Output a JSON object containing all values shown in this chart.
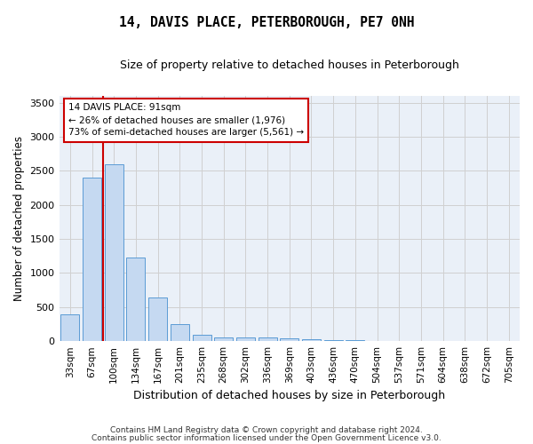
{
  "title": "14, DAVIS PLACE, PETERBOROUGH, PE7 0NH",
  "subtitle": "Size of property relative to detached houses in Peterborough",
  "xlabel": "Distribution of detached houses by size in Peterborough",
  "ylabel": "Number of detached properties",
  "footer_line1": "Contains HM Land Registry data © Crown copyright and database right 2024.",
  "footer_line2": "Contains public sector information licensed under the Open Government Licence v3.0.",
  "categories": [
    "33sqm",
    "67sqm",
    "100sqm",
    "134sqm",
    "167sqm",
    "201sqm",
    "235sqm",
    "268sqm",
    "302sqm",
    "336sqm",
    "369sqm",
    "403sqm",
    "436sqm",
    "470sqm",
    "504sqm",
    "537sqm",
    "571sqm",
    "604sqm",
    "638sqm",
    "672sqm",
    "705sqm"
  ],
  "values": [
    390,
    2400,
    2600,
    1230,
    640,
    255,
    90,
    60,
    55,
    50,
    40,
    30,
    15,
    10,
    8,
    5,
    3,
    2,
    2,
    1,
    1
  ],
  "bar_color": "#c5d9f1",
  "bar_edge_color": "#5b9bd5",
  "grid_color": "#d0d0d0",
  "bg_color": "#eaf0f8",
  "red_line_x": 1.5,
  "red_line_color": "#cc0000",
  "annotation_text": "14 DAVIS PLACE: 91sqm\n← 26% of detached houses are smaller (1,976)\n73% of semi-detached houses are larger (5,561) →",
  "annotation_box_color": "#ffffff",
  "annotation_box_edge": "#cc0000",
  "ylim": [
    0,
    3600
  ],
  "yticks": [
    0,
    500,
    1000,
    1500,
    2000,
    2500,
    3000,
    3500
  ]
}
